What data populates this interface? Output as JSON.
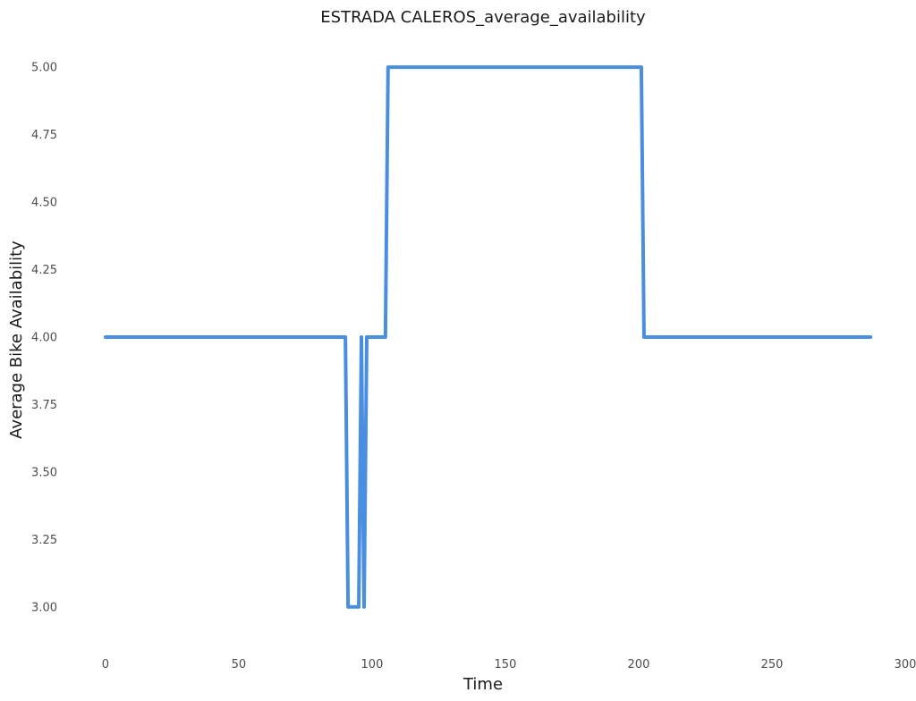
{
  "chart_data": {
    "type": "line",
    "title": "ESTRADA CALEROS_average_availability",
    "xlabel": "Time",
    "ylabel": "Average Bike Availability",
    "xlim": [
      -4,
      300
    ],
    "ylim": [
      2.89,
      5.09
    ],
    "xticks": [
      0,
      50,
      100,
      150,
      200,
      250,
      300
    ],
    "xtick_labels": [
      "0",
      "50",
      "100",
      "150",
      "200",
      "250",
      "300"
    ],
    "yticks": [
      3.0,
      3.25,
      3.5,
      3.75,
      4.0,
      4.25,
      4.5,
      4.75,
      5.0
    ],
    "ytick_labels": [
      "3.00",
      "3.25",
      "3.50",
      "3.75",
      "4.00",
      "4.25",
      "4.50",
      "4.75",
      "5.00"
    ],
    "grid": false,
    "series": [
      {
        "color": "#4a8fdf",
        "x": [
          0,
          90,
          91,
          95,
          96,
          97,
          98,
          105,
          106,
          201,
          202,
          287
        ],
        "y": [
          4,
          4,
          3,
          3,
          4,
          3,
          4,
          4,
          5,
          5,
          4,
          4
        ]
      }
    ]
  }
}
